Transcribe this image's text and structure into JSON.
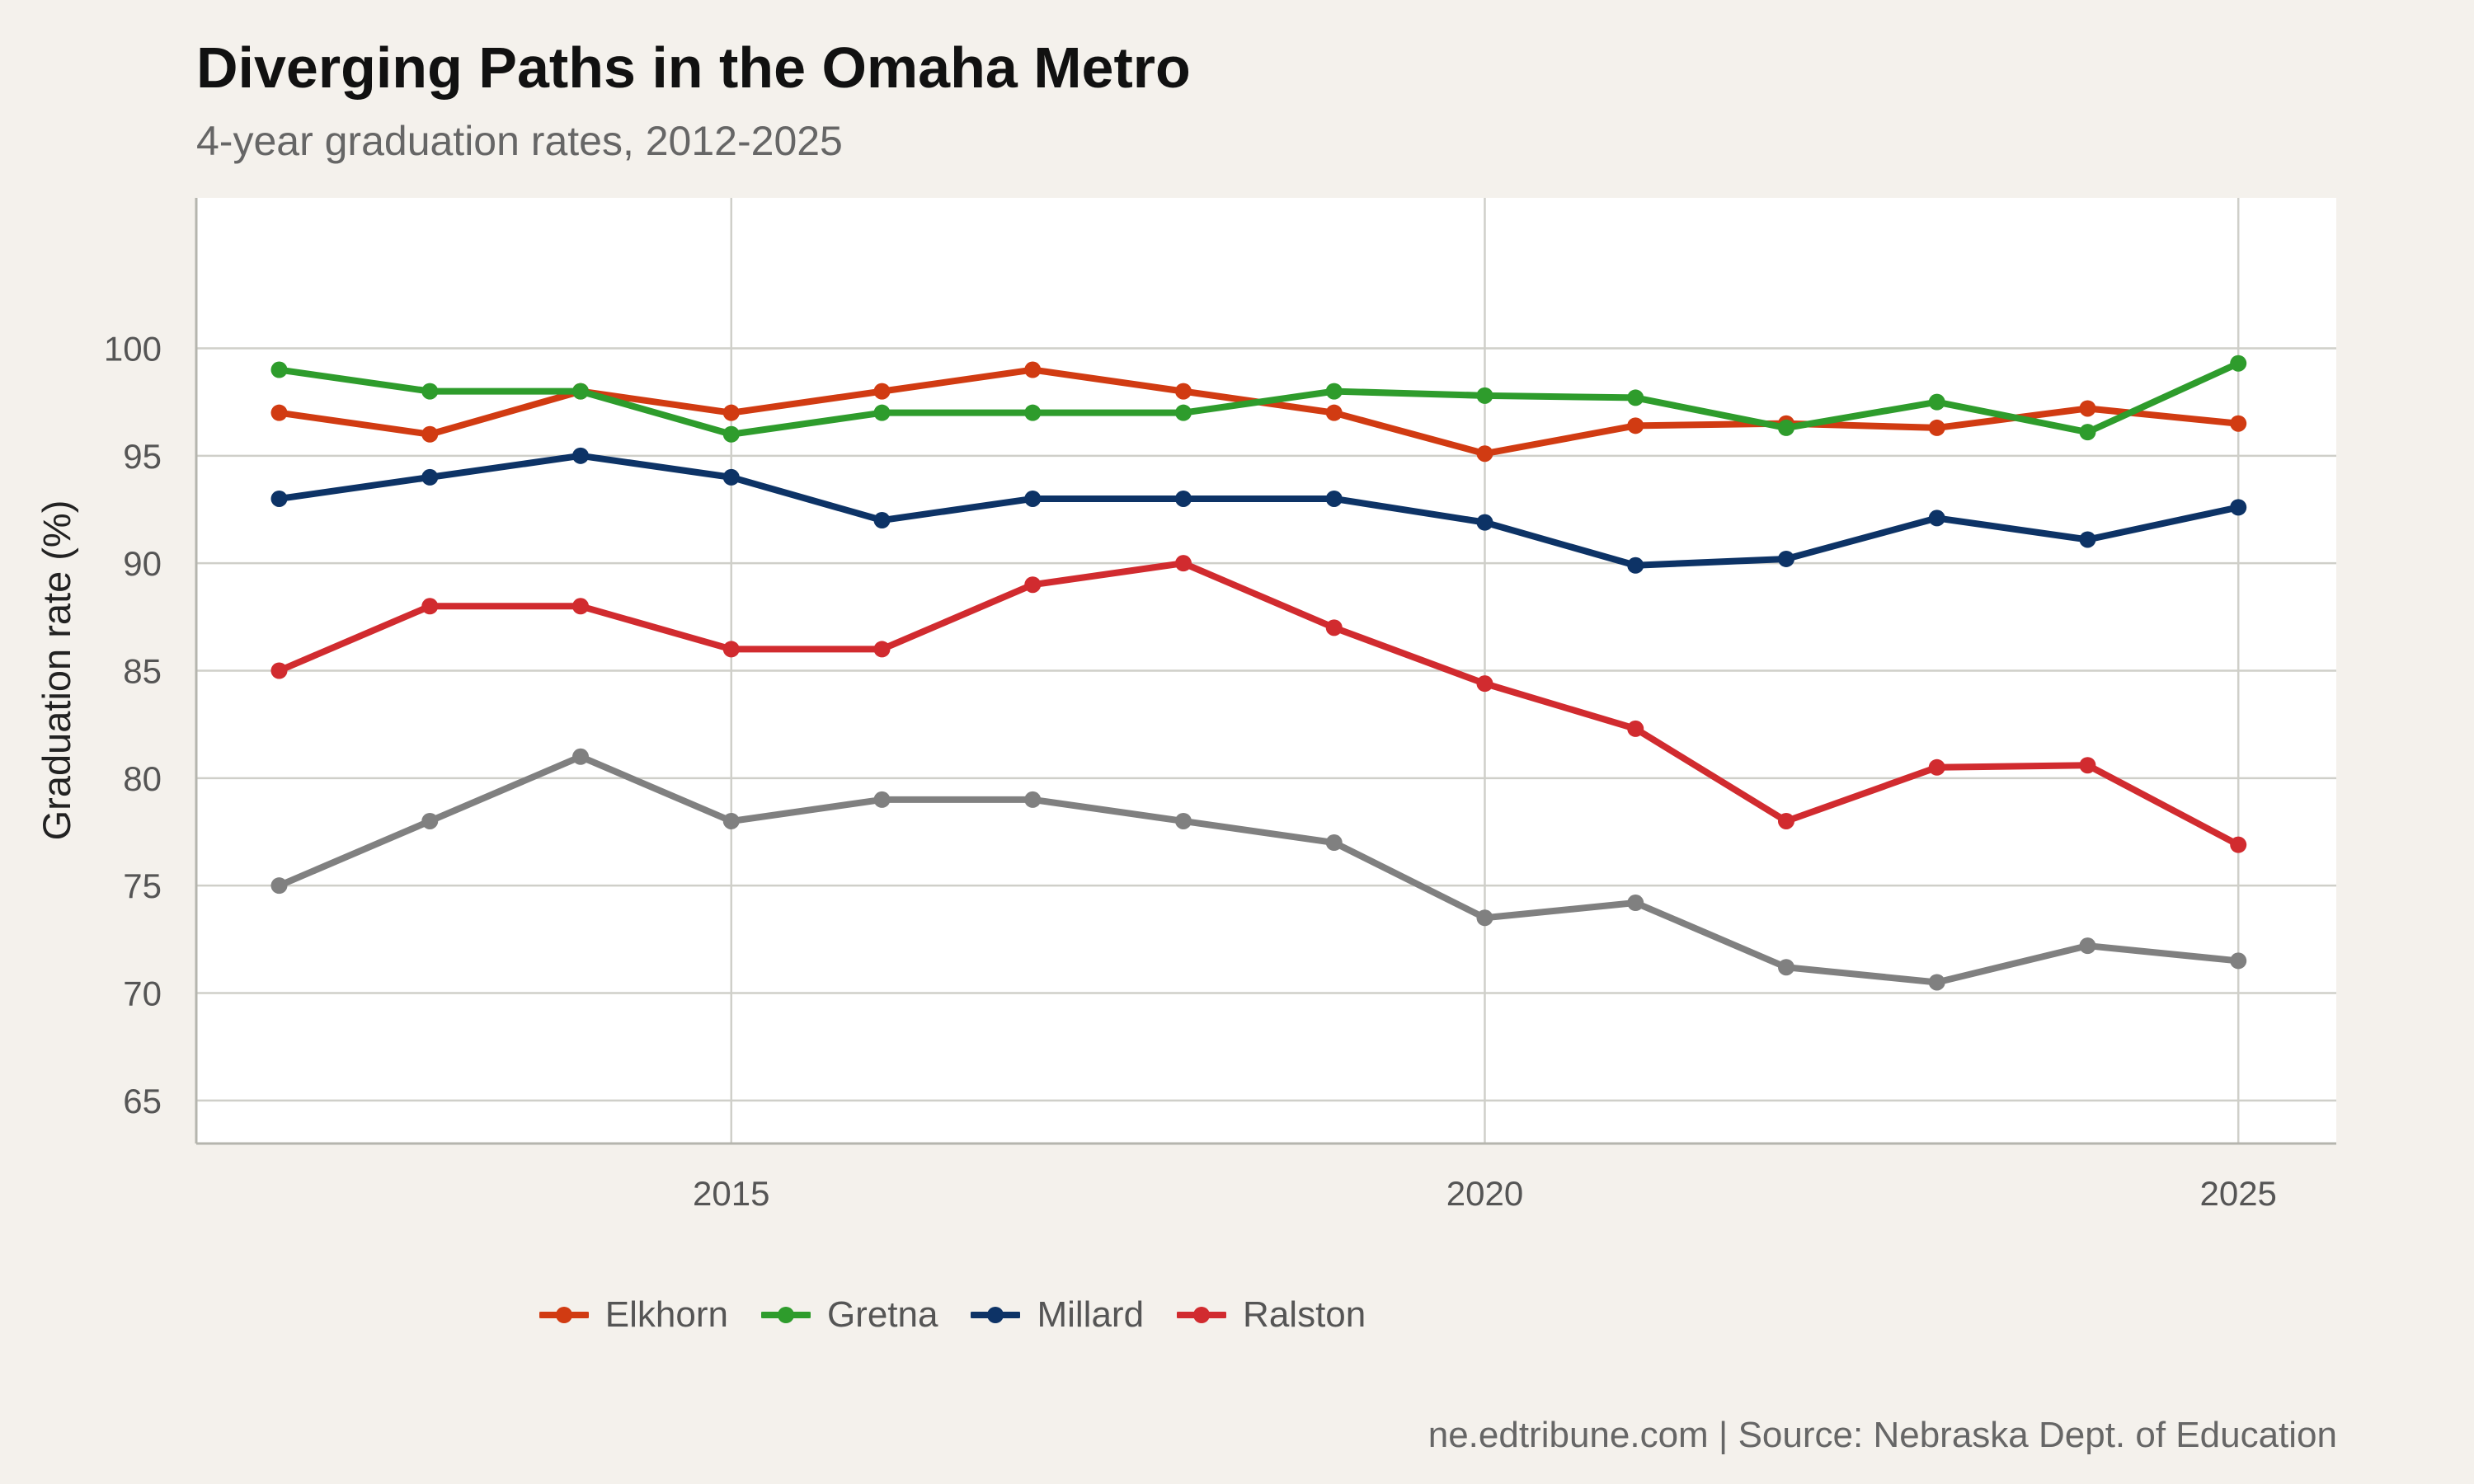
{
  "title": "Diverging Paths in the Omaha Metro",
  "subtitle": "4-year graduation rates, 2012-2025",
  "caption": "ne.edtribune.com | Source: Nebraska Dept. of Education",
  "colors": {
    "background": "#f4f1ec",
    "panel": "#ffffff",
    "grid": "#cfcfc9"
  },
  "chart_data": {
    "type": "line",
    "title": "Diverging Paths in the Omaha Metro",
    "subtitle": "4-year graduation rates, 2012-2025",
    "xlabel": "",
    "ylabel": "Graduation rate (%)",
    "xlim": [
      2011.45,
      2025.65
    ],
    "ylim": [
      63,
      107
    ],
    "x_ticks": [
      2015,
      2020,
      2025
    ],
    "y_ticks": [
      65,
      70,
      75,
      80,
      85,
      90,
      95,
      100
    ],
    "grid": true,
    "legend_position": "bottom",
    "x": [
      2012,
      2013,
      2014,
      2015,
      2016,
      2017,
      2018,
      2019,
      2020,
      2021,
      2022,
      2023,
      2024,
      2025
    ],
    "series": [
      {
        "name": "",
        "color": "#808080",
        "in_legend": false,
        "values": [
          75,
          78,
          81,
          78,
          79,
          79,
          78,
          77,
          73.5,
          74.2,
          71.2,
          70.5,
          72.2,
          71.5
        ]
      },
      {
        "name": "Millard",
        "color": "#0d3366",
        "in_legend": true,
        "values": [
          93,
          94,
          95,
          94,
          92,
          93,
          93,
          93,
          91.9,
          89.9,
          90.2,
          92.1,
          91.1,
          92.6
        ]
      },
      {
        "name": "Ralston",
        "color": "#d12b2f",
        "in_legend": true,
        "values": [
          85,
          88,
          88,
          86,
          86,
          89,
          90,
          87,
          84.4,
          82.3,
          78,
          80.5,
          80.6,
          76.9
        ]
      },
      {
        "name": "Elkhorn",
        "color": "#d13b12",
        "in_legend": true,
        "values": [
          97,
          96,
          98,
          97,
          98,
          99,
          98,
          97,
          95.1,
          96.4,
          96.5,
          96.3,
          97.2,
          96.5
        ]
      },
      {
        "name": "Gretna",
        "color": "#2e9c2c",
        "in_legend": true,
        "values": [
          99,
          98,
          98,
          96,
          97,
          97,
          97,
          98,
          97.8,
          97.7,
          96.3,
          97.5,
          96.1,
          99.3
        ]
      }
    ],
    "legend": [
      "Elkhorn",
      "Gretna",
      "Millard",
      "Ralston"
    ]
  }
}
